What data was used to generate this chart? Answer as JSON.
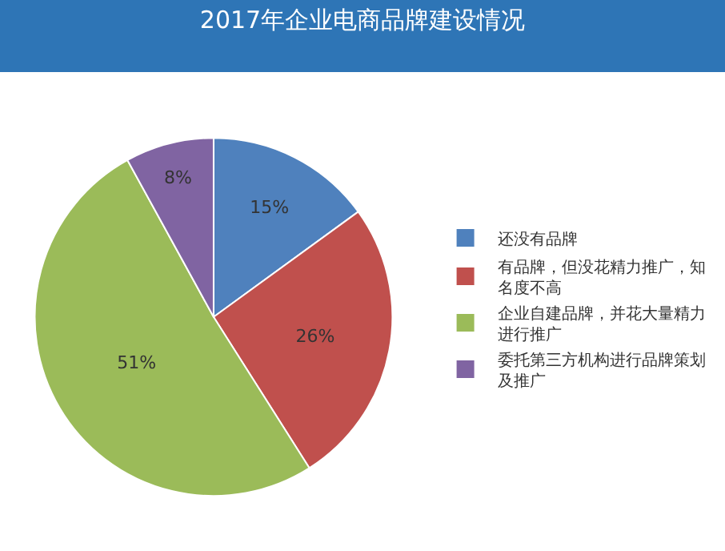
{
  "chart_data": {
    "type": "pie",
    "title": "2017年企业电商品牌建设情况",
    "categories": [
      "还没有品牌",
      "有品牌，但没花精力推广，知名度不高",
      "企业自建品牌，并花大量精力进行推广",
      "委托第三方机构进行品牌策划及推广"
    ],
    "values": [
      15,
      26,
      51,
      8
    ],
    "colors": [
      "#4f81bd",
      "#c0504d",
      "#9bbb59",
      "#8064a2"
    ],
    "value_labels": [
      "15%",
      "26%",
      "51%",
      "8%"
    ],
    "legend": "right"
  }
}
